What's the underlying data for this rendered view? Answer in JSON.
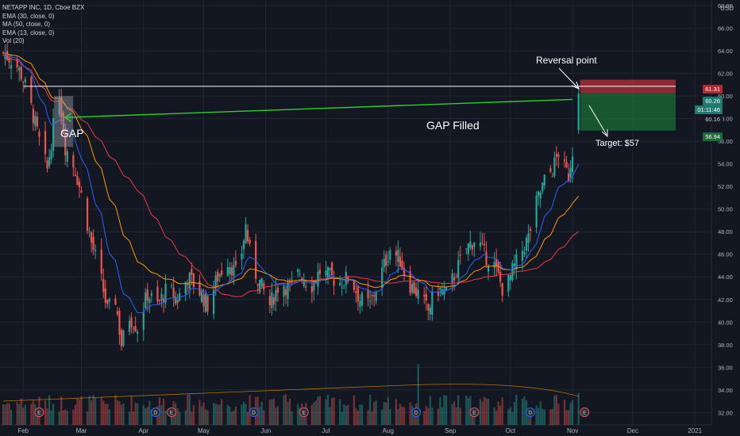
{
  "legend": {
    "title": "NETAPP INC, 1D, Cboe BZX",
    "ema30": "EMA (30, close, 0)",
    "ma50": "MA (50, close, 0)",
    "ema13": "EMA (13, close, 0)",
    "vol": "Vol (20)"
  },
  "currency": "USD",
  "colors": {
    "background": "#131722",
    "grid": "#222631",
    "up": "#26a69a",
    "down": "#ef5350",
    "ema13": "#2962ff",
    "ema30": "#ff9800",
    "ma50": "#f23645",
    "gap_arrow": "#2cd12c",
    "stop_zone": "#f23645",
    "target_zone": "#1d8a3a"
  },
  "annotations": {
    "gap": "GAP",
    "gap_filled": "GAP Filled",
    "reversal": "Reversal point",
    "target": "Target: $57"
  },
  "price_labels": {
    "stop": "61.31",
    "entry": "60.26",
    "timer": "01:11:46",
    "level": "60.16",
    "target": "56.94"
  },
  "events": [
    "E",
    "D",
    "E",
    "D",
    "E",
    "D",
    "E",
    "D",
    "E"
  ],
  "chart_data": {
    "type": "candlestick",
    "title": "NETAPP INC, 1D, Cboe BZX",
    "y_ticks": [
      32,
      34,
      36,
      38,
      40,
      42,
      44,
      46,
      48,
      50,
      52,
      54,
      56,
      58,
      60,
      62,
      64,
      66,
      68
    ],
    "x_ticks": [
      "Feb",
      "Mar",
      "Apr",
      "May",
      "Jun",
      "Jul",
      "Aug",
      "Sep",
      "Oct",
      "Nov",
      "Dec",
      "2021",
      "Feb"
    ],
    "ylim": [
      31.6,
      68.5
    ],
    "grid": true,
    "close_path": [
      {
        "d": 0,
        "c": 63.8
      },
      {
        "d": 6,
        "c": 63.0
      },
      {
        "d": 10,
        "c": 61.5
      },
      {
        "d": 14,
        "c": 59.0
      },
      {
        "d": 18,
        "c": 56.0
      },
      {
        "d": 22,
        "c": 53.5
      },
      {
        "d": 26,
        "c": 58.5
      },
      {
        "d": 28,
        "c": 60.3
      },
      {
        "d": 31,
        "c": 55.5
      },
      {
        "d": 36,
        "c": 53.5
      },
      {
        "d": 40,
        "c": 50.5
      },
      {
        "d": 44,
        "c": 47.0
      },
      {
        "d": 48,
        "c": 44.5
      },
      {
        "d": 52,
        "c": 41.0
      },
      {
        "d": 56,
        "c": 42.0
      },
      {
        "d": 59,
        "c": 38.0
      },
      {
        "d": 63,
        "c": 40.5
      },
      {
        "d": 67,
        "c": 39.5
      },
      {
        "d": 72,
        "c": 42.5
      },
      {
        "d": 77,
        "c": 41.5
      },
      {
        "d": 82,
        "c": 43.0
      },
      {
        "d": 87,
        "c": 42.0
      },
      {
        "d": 92,
        "c": 44.0
      },
      {
        "d": 97,
        "c": 43.0
      },
      {
        "d": 102,
        "c": 41.5
      },
      {
        "d": 107,
        "c": 44.0
      },
      {
        "d": 112,
        "c": 45.5
      },
      {
        "d": 117,
        "c": 44.0
      },
      {
        "d": 121,
        "c": 48.5
      },
      {
        "d": 124,
        "c": 45.0
      },
      {
        "d": 128,
        "c": 43.5
      },
      {
        "d": 133,
        "c": 41.5
      },
      {
        "d": 138,
        "c": 43.5
      },
      {
        "d": 143,
        "c": 43.0
      },
      {
        "d": 148,
        "c": 44.5
      },
      {
        "d": 153,
        "c": 43.0
      },
      {
        "d": 158,
        "c": 44.5
      },
      {
        "d": 163,
        "c": 44.0
      },
      {
        "d": 168,
        "c": 43.5
      },
      {
        "d": 173,
        "c": 44.0
      },
      {
        "d": 178,
        "c": 42.0
      },
      {
        "d": 183,
        "c": 41.5
      },
      {
        "d": 188,
        "c": 44.0
      },
      {
        "d": 193,
        "c": 46.5
      },
      {
        "d": 198,
        "c": 45.5
      },
      {
        "d": 202,
        "c": 43.5
      },
      {
        "d": 207,
        "c": 42.5
      },
      {
        "d": 212,
        "c": 41.0
      },
      {
        "d": 216,
        "c": 43.0
      },
      {
        "d": 221,
        "c": 42.5
      },
      {
        "d": 226,
        "c": 44.5
      },
      {
        "d": 231,
        "c": 46.5
      },
      {
        "d": 236,
        "c": 47.5
      },
      {
        "d": 240,
        "c": 46.0
      },
      {
        "d": 245,
        "c": 45.0
      },
      {
        "d": 250,
        "c": 42.5
      },
      {
        "d": 254,
        "c": 44.5
      },
      {
        "d": 258,
        "c": 46.0
      },
      {
        "d": 262,
        "c": 47.5
      },
      {
        "d": 266,
        "c": 50.5
      },
      {
        "d": 270,
        "c": 52.5
      },
      {
        "d": 274,
        "c": 53.5
      },
      {
        "d": 277,
        "c": 55.0
      },
      {
        "d": 280,
        "c": 53.5
      },
      {
        "d": 282,
        "c": 53.0
      },
      {
        "d": 286,
        "c": 57.5
      },
      {
        "d": 287,
        "c": 60.2
      }
    ],
    "volume_spikes": [
      {
        "d": 207,
        "v": 0.85
      },
      {
        "d": 287,
        "v": 0.45
      }
    ],
    "gap_level": 61.0,
    "gap_zone": [
      55.5,
      60.0
    ],
    "stop_level": 61.31,
    "entry_level": 60.26,
    "target_level": 56.94
  }
}
